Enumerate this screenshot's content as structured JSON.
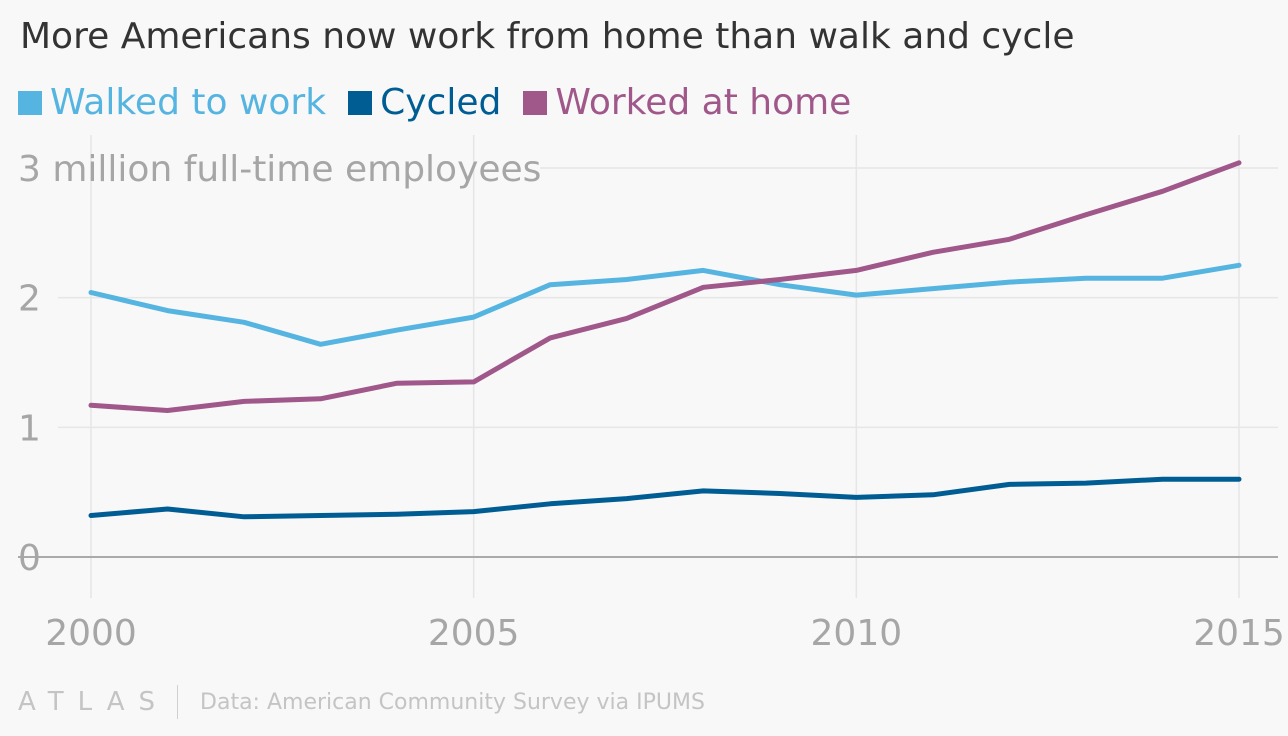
{
  "title": "More Americans now work from home than walk and cycle",
  "brand": "ATLAS",
  "source": "Data: American Community Survey via IPUMS",
  "colors": {
    "walked": "#56b4e1",
    "cycled": "#005d94",
    "home": "#a0578a",
    "grid": "#e6e6e6",
    "axis": "#aaaaaa",
    "tick_text": "#a6a6a6"
  },
  "chart_data": {
    "type": "line",
    "title": "More Americans now work from home than walk and cycle",
    "ylabel": "3 million full-time employees",
    "xlabel": "",
    "x": [
      2000,
      2001,
      2002,
      2003,
      2004,
      2005,
      2006,
      2007,
      2008,
      2009,
      2010,
      2011,
      2012,
      2013,
      2014,
      2015
    ],
    "x_ticks": [
      2000,
      2005,
      2010,
      2015
    ],
    "y_ticks": [
      0,
      1,
      2,
      3
    ],
    "y_tick_labels": [
      "0",
      "1",
      "2",
      "3 million full-time employees"
    ],
    "xlim": [
      2000,
      2015
    ],
    "ylim": [
      0,
      3
    ],
    "grid": true,
    "legend_position": "top-left",
    "series": [
      {
        "name": "Walked to work",
        "color": "#56b4e1",
        "values": [
          2.04,
          1.9,
          1.81,
          1.64,
          1.75,
          1.85,
          2.1,
          2.14,
          2.21,
          2.1,
          2.02,
          2.07,
          2.12,
          2.15,
          2.15,
          2.25
        ]
      },
      {
        "name": "Cycled",
        "color": "#005d94",
        "values": [
          0.32,
          0.37,
          0.31,
          0.32,
          0.33,
          0.35,
          0.41,
          0.45,
          0.51,
          0.49,
          0.46,
          0.48,
          0.56,
          0.57,
          0.6,
          0.6
        ]
      },
      {
        "name": "Worked at home",
        "color": "#a0578a",
        "values": [
          1.17,
          1.13,
          1.2,
          1.22,
          1.34,
          1.35,
          1.69,
          1.84,
          2.08,
          2.14,
          2.21,
          2.35,
          2.45,
          2.64,
          2.82,
          3.04
        ]
      }
    ]
  }
}
